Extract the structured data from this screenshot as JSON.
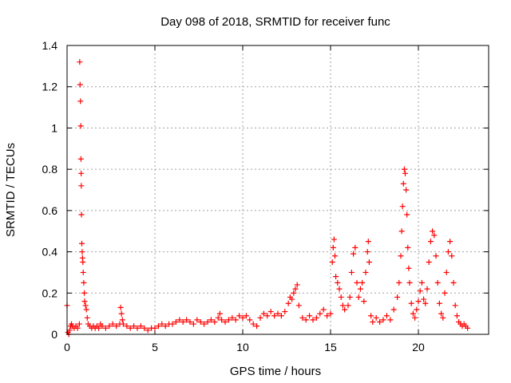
{
  "chart_data": {
    "type": "scatter",
    "title": "Day 098 of 2018, SRMTID for receiver func",
    "xlabel": "GPS time / hours",
    "ylabel": "SRMTID / TECUs",
    "xlim": [
      0,
      24
    ],
    "ylim": [
      0,
      1.4
    ],
    "xticks": [
      0,
      5,
      10,
      15,
      20
    ],
    "xtick_labels": [
      "0",
      "5",
      "10",
      "15",
      "20"
    ],
    "yticks": [
      0,
      0.2,
      0.4,
      0.6,
      0.8,
      1,
      1.2,
      1.4
    ],
    "ytick_labels": [
      "0",
      "0.2",
      "0.4",
      "0.6",
      "0.8",
      "1",
      "1.2",
      "1.4"
    ],
    "grid": true,
    "marker": "+",
    "color": "#ff0000",
    "series": [
      {
        "name": "SRMTID",
        "points": [
          [
            0.0,
            0.14
          ],
          [
            0.05,
            0.01
          ],
          [
            0.1,
            0.0
          ],
          [
            0.15,
            0.02
          ],
          [
            0.2,
            0.04
          ],
          [
            0.25,
            0.05
          ],
          [
            0.3,
            0.04
          ],
          [
            0.4,
            0.03
          ],
          [
            0.5,
            0.04
          ],
          [
            0.6,
            0.03
          ],
          [
            0.7,
            0.05
          ],
          [
            0.72,
            1.32
          ],
          [
            0.74,
            1.21
          ],
          [
            0.76,
            1.13
          ],
          [
            0.78,
            1.01
          ],
          [
            0.79,
            0.85
          ],
          [
            0.8,
            0.78
          ],
          [
            0.81,
            0.72
          ],
          [
            0.82,
            0.58
          ],
          [
            0.84,
            0.44
          ],
          [
            0.86,
            0.4
          ],
          [
            0.88,
            0.37
          ],
          [
            0.9,
            0.35
          ],
          [
            0.92,
            0.3
          ],
          [
            0.95,
            0.25
          ],
          [
            0.98,
            0.2
          ],
          [
            1.0,
            0.16
          ],
          [
            1.05,
            0.14
          ],
          [
            1.1,
            0.12
          ],
          [
            1.15,
            0.08
          ],
          [
            1.2,
            0.05
          ],
          [
            1.3,
            0.04
          ],
          [
            1.4,
            0.03
          ],
          [
            1.5,
            0.04
          ],
          [
            1.6,
            0.03
          ],
          [
            1.7,
            0.04
          ],
          [
            1.8,
            0.03
          ],
          [
            1.9,
            0.05
          ],
          [
            2.0,
            0.04
          ],
          [
            2.2,
            0.03
          ],
          [
            2.4,
            0.04
          ],
          [
            2.6,
            0.05
          ],
          [
            2.8,
            0.04
          ],
          [
            3.0,
            0.05
          ],
          [
            3.05,
            0.13
          ],
          [
            3.1,
            0.1
          ],
          [
            3.15,
            0.07
          ],
          [
            3.2,
            0.05
          ],
          [
            3.4,
            0.04
          ],
          [
            3.6,
            0.03
          ],
          [
            3.8,
            0.04
          ],
          [
            4.0,
            0.03
          ],
          [
            4.2,
            0.04
          ],
          [
            4.4,
            0.03
          ],
          [
            4.6,
            0.02
          ],
          [
            4.8,
            0.03
          ],
          [
            5.0,
            0.03
          ],
          [
            5.2,
            0.04
          ],
          [
            5.4,
            0.05
          ],
          [
            5.6,
            0.04
          ],
          [
            5.8,
            0.05
          ],
          [
            6.0,
            0.05
          ],
          [
            6.2,
            0.06
          ],
          [
            6.4,
            0.07
          ],
          [
            6.6,
            0.06
          ],
          [
            6.8,
            0.07
          ],
          [
            7.0,
            0.06
          ],
          [
            7.2,
            0.05
          ],
          [
            7.4,
            0.07
          ],
          [
            7.6,
            0.06
          ],
          [
            7.8,
            0.05
          ],
          [
            8.0,
            0.06
          ],
          [
            8.2,
            0.07
          ],
          [
            8.4,
            0.06
          ],
          [
            8.6,
            0.08
          ],
          [
            8.7,
            0.1
          ],
          [
            8.8,
            0.07
          ],
          [
            9.0,
            0.06
          ],
          [
            9.2,
            0.07
          ],
          [
            9.4,
            0.08
          ],
          [
            9.6,
            0.07
          ],
          [
            9.8,
            0.09
          ],
          [
            10.0,
            0.08
          ],
          [
            10.2,
            0.09
          ],
          [
            10.4,
            0.07
          ],
          [
            10.6,
            0.05
          ],
          [
            10.8,
            0.04
          ],
          [
            11.0,
            0.08
          ],
          [
            11.2,
            0.1
          ],
          [
            11.4,
            0.09
          ],
          [
            11.6,
            0.11
          ],
          [
            11.8,
            0.09
          ],
          [
            12.0,
            0.1
          ],
          [
            12.2,
            0.09
          ],
          [
            12.4,
            0.11
          ],
          [
            12.6,
            0.15
          ],
          [
            12.7,
            0.18
          ],
          [
            12.8,
            0.17
          ],
          [
            12.9,
            0.2
          ],
          [
            13.0,
            0.22
          ],
          [
            13.1,
            0.24
          ],
          [
            13.2,
            0.14
          ],
          [
            13.4,
            0.08
          ],
          [
            13.6,
            0.07
          ],
          [
            13.8,
            0.09
          ],
          [
            14.0,
            0.07
          ],
          [
            14.2,
            0.08
          ],
          [
            14.4,
            0.1
          ],
          [
            14.6,
            0.12
          ],
          [
            14.8,
            0.09
          ],
          [
            15.0,
            0.1
          ],
          [
            15.1,
            0.35
          ],
          [
            15.15,
            0.42
          ],
          [
            15.2,
            0.46
          ],
          [
            15.25,
            0.38
          ],
          [
            15.3,
            0.28
          ],
          [
            15.4,
            0.25
          ],
          [
            15.5,
            0.22
          ],
          [
            15.6,
            0.18
          ],
          [
            15.7,
            0.14
          ],
          [
            15.8,
            0.12
          ],
          [
            16.0,
            0.14
          ],
          [
            16.1,
            0.18
          ],
          [
            16.2,
            0.3
          ],
          [
            16.3,
            0.39
          ],
          [
            16.4,
            0.42
          ],
          [
            16.5,
            0.25
          ],
          [
            16.6,
            0.18
          ],
          [
            16.7,
            0.22
          ],
          [
            16.8,
            0.25
          ],
          [
            16.9,
            0.16
          ],
          [
            17.0,
            0.3
          ],
          [
            17.1,
            0.4
          ],
          [
            17.15,
            0.45
          ],
          [
            17.2,
            0.35
          ],
          [
            17.3,
            0.09
          ],
          [
            17.4,
            0.06
          ],
          [
            17.6,
            0.08
          ],
          [
            17.8,
            0.06
          ],
          [
            18.0,
            0.07
          ],
          [
            18.2,
            0.09
          ],
          [
            18.4,
            0.07
          ],
          [
            18.6,
            0.12
          ],
          [
            18.8,
            0.18
          ],
          [
            18.9,
            0.25
          ],
          [
            19.0,
            0.38
          ],
          [
            19.05,
            0.5
          ],
          [
            19.1,
            0.62
          ],
          [
            19.15,
            0.73
          ],
          [
            19.2,
            0.8
          ],
          [
            19.25,
            0.78
          ],
          [
            19.3,
            0.7
          ],
          [
            19.35,
            0.58
          ],
          [
            19.4,
            0.42
          ],
          [
            19.45,
            0.32
          ],
          [
            19.5,
            0.25
          ],
          [
            19.6,
            0.15
          ],
          [
            19.7,
            0.1
          ],
          [
            19.8,
            0.08
          ],
          [
            19.9,
            0.12
          ],
          [
            20.0,
            0.16
          ],
          [
            20.1,
            0.21
          ],
          [
            20.2,
            0.25
          ],
          [
            20.3,
            0.17
          ],
          [
            20.4,
            0.15
          ],
          [
            20.5,
            0.22
          ],
          [
            20.6,
            0.35
          ],
          [
            20.7,
            0.45
          ],
          [
            20.8,
            0.5
          ],
          [
            20.9,
            0.48
          ],
          [
            21.0,
            0.38
          ],
          [
            21.1,
            0.25
          ],
          [
            21.2,
            0.15
          ],
          [
            21.3,
            0.1
          ],
          [
            21.4,
            0.08
          ],
          [
            21.5,
            0.2
          ],
          [
            21.6,
            0.3
          ],
          [
            21.7,
            0.4
          ],
          [
            21.8,
            0.45
          ],
          [
            21.9,
            0.38
          ],
          [
            22.0,
            0.25
          ],
          [
            22.1,
            0.14
          ],
          [
            22.2,
            0.09
          ],
          [
            22.3,
            0.06
          ],
          [
            22.4,
            0.05
          ],
          [
            22.5,
            0.04
          ],
          [
            22.6,
            0.05
          ],
          [
            22.7,
            0.04
          ],
          [
            22.8,
            0.03
          ]
        ]
      }
    ]
  }
}
